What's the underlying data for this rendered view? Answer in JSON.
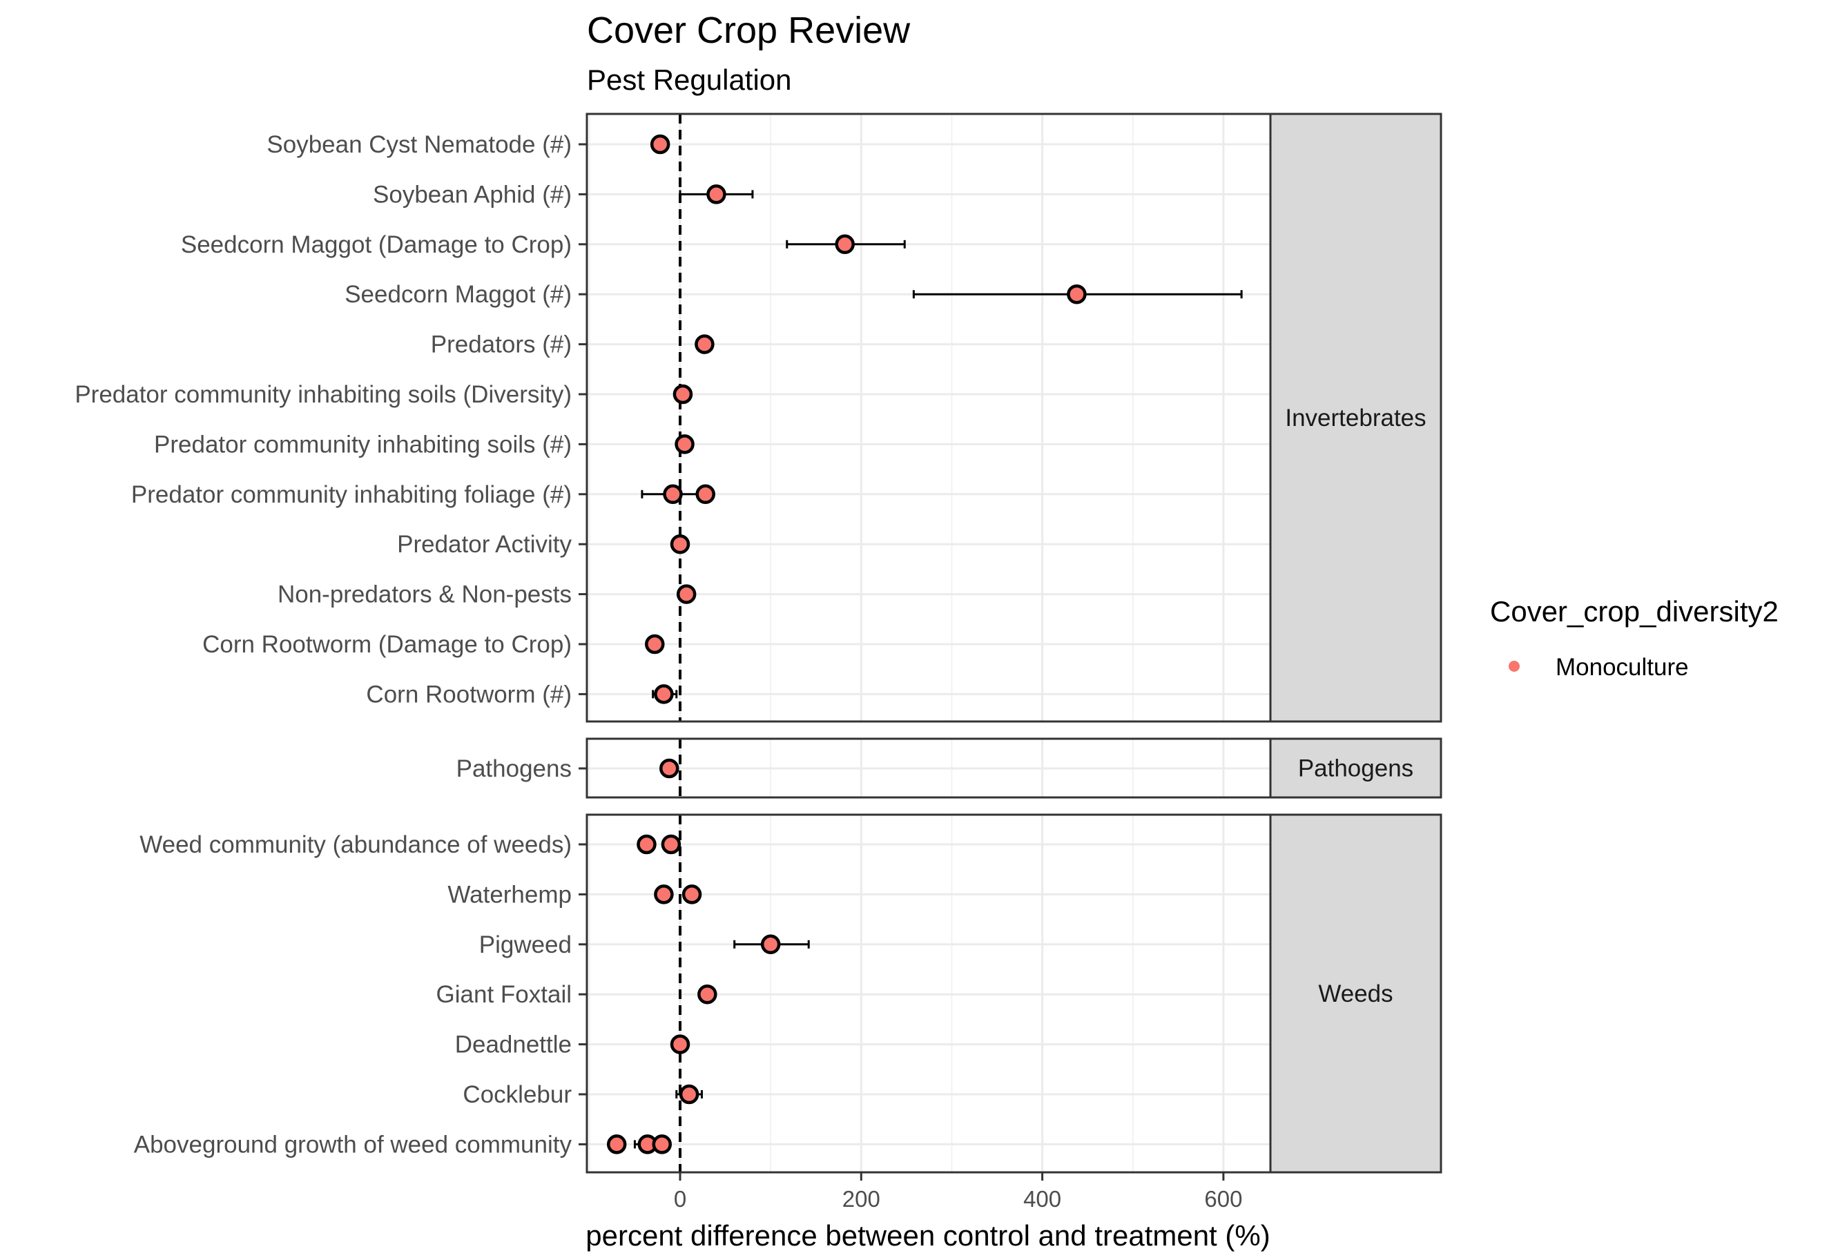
{
  "title": "Cover Crop Review",
  "subtitle": "Pest Regulation",
  "chart_data": {
    "type": "scatter",
    "title": "Cover Crop Review",
    "subtitle": "Pest Regulation",
    "xlabel": "percent difference between control and treatment (%)",
    "ylabel": "",
    "xlim": [
      -100,
      650
    ],
    "xticks": [
      0,
      200,
      400,
      600
    ],
    "xtick_labels": [
      "0",
      "200",
      "400",
      "600"
    ],
    "reference_line_x": 0,
    "grid": true,
    "legend": {
      "title": "Cover_crop_diversity2",
      "placement": "right",
      "entries": [
        {
          "label": "Monoculture",
          "color": "#f8766d"
        }
      ]
    },
    "series": [
      {
        "name": "Monoculture",
        "color": "#f8766d"
      }
    ],
    "panels": [
      {
        "strip": "Invertebrates",
        "rows": [
          {
            "label": "Soybean Cyst Nematode (#)",
            "points": [
              {
                "x": -22
              }
            ]
          },
          {
            "label": "Soybean Aphid (#)",
            "points": [
              {
                "x": 40,
                "lo": 0,
                "hi": 80
              }
            ]
          },
          {
            "label": "Seedcorn Maggot (Damage to Crop)",
            "points": [
              {
                "x": 182,
                "lo": 118,
                "hi": 248
              }
            ]
          },
          {
            "label": "Seedcorn Maggot (#)",
            "points": [
              {
                "x": 438,
                "lo": 258,
                "hi": 620
              }
            ]
          },
          {
            "label": "Predators (#)",
            "points": [
              {
                "x": 27
              }
            ]
          },
          {
            "label": "Predator community inhabiting soils (Diversity)",
            "points": [
              {
                "x": 3
              }
            ]
          },
          {
            "label": "Predator community inhabiting soils (#)",
            "points": [
              {
                "x": 5
              }
            ]
          },
          {
            "label": "Predator community inhabiting foliage (#)",
            "points": [
              {
                "x": -8,
                "lo": -42,
                "hi": 26
              },
              {
                "x": 28
              }
            ]
          },
          {
            "label": "Predator Activity",
            "points": [
              {
                "x": 0
              }
            ]
          },
          {
            "label": "Non-predators & Non-pests",
            "points": [
              {
                "x": 7
              }
            ]
          },
          {
            "label": "Corn Rootworm (Damage to Crop)",
            "points": [
              {
                "x": -28
              }
            ]
          },
          {
            "label": "Corn Rootworm (#)",
            "points": [
              {
                "x": -18,
                "lo": -30,
                "hi": -4
              }
            ]
          }
        ]
      },
      {
        "strip": "Pathogens",
        "rows": [
          {
            "label": "Pathogens",
            "points": [
              {
                "x": -12
              }
            ]
          }
        ]
      },
      {
        "strip": "Weeds",
        "rows": [
          {
            "label": "Weed community (abundance of weeds)",
            "points": [
              {
                "x": -37
              },
              {
                "x": -10
              }
            ]
          },
          {
            "label": "Waterhemp",
            "points": [
              {
                "x": -18
              },
              {
                "x": 13
              }
            ]
          },
          {
            "label": "Pigweed",
            "points": [
              {
                "x": 100,
                "lo": 60,
                "hi": 142
              }
            ]
          },
          {
            "label": "Giant Foxtail",
            "points": [
              {
                "x": 30
              }
            ]
          },
          {
            "label": "Deadnettle",
            "points": [
              {
                "x": 0
              }
            ]
          },
          {
            "label": "Cocklebur",
            "points": [
              {
                "x": 10,
                "lo": -4,
                "hi": 24
              }
            ]
          },
          {
            "label": "Aboveground growth of weed community",
            "points": [
              {
                "x": -70
              },
              {
                "x": -36,
                "lo": -50,
                "hi": -24
              },
              {
                "x": -20
              }
            ]
          }
        ]
      }
    ]
  }
}
